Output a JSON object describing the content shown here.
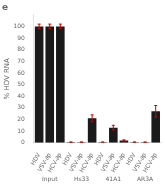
{
  "chart_data": {
    "type": "bar",
    "title": "e",
    "ylabel": "% HDV RNA",
    "groups": [
      "Input",
      "Hs33",
      "41A1",
      "AR3A"
    ],
    "categories": [
      "HDV",
      "VSV-∂p",
      "HCV-∂p",
      "HDV",
      "VSV-∂p",
      "HCV-∂p",
      "HDV",
      "VSV-∂p",
      "HCV-∂p",
      "HDV",
      "VSV-∂p",
      "HCV-∂p"
    ],
    "values": [
      100,
      100,
      100,
      0.5,
      0.5,
      21,
      0.5,
      13,
      2,
      0.5,
      0.5,
      27
    ],
    "errors": [
      2,
      2,
      2,
      0.2,
      0.2,
      3,
      0.2,
      2,
      0.5,
      0.2,
      0.2,
      5
    ],
    "color": "#1a1a1a",
    "error_color": "#cc0000",
    "ylim": [
      0,
      110
    ],
    "yticks": [
      0,
      10,
      20,
      30,
      40,
      50,
      60,
      70,
      80,
      90,
      100
    ],
    "grid": false
  }
}
